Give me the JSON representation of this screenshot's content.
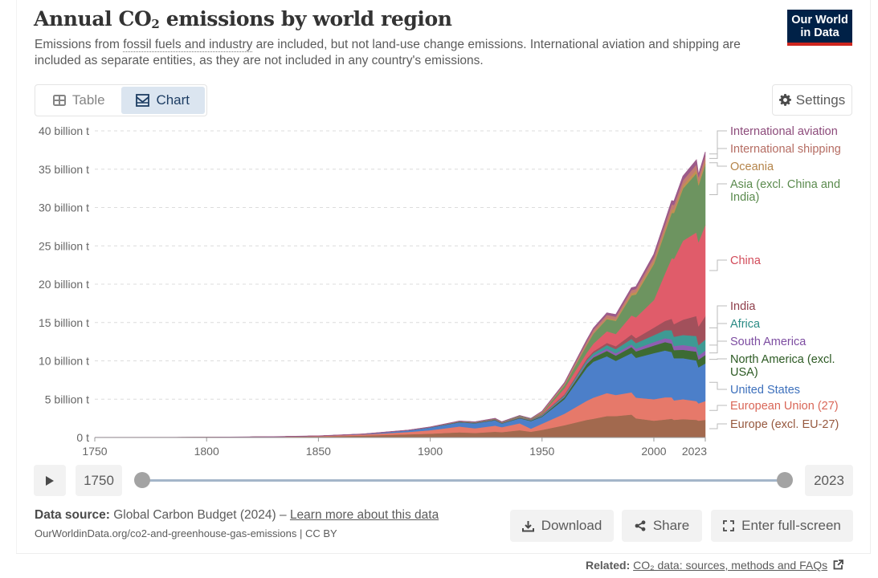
{
  "header": {
    "title_pre": "Annual CO",
    "title_sub": "2",
    "title_post": " emissions by world region",
    "subtitle_pre": "Emissions from ",
    "subtitle_link": "fossil fuels and industry",
    "subtitle_post": " are included, but not land-use change emissions. International aviation and shipping are included as separate entities, as they are not included in any country's emissions.",
    "logo_line1": "Our World",
    "logo_line2": "in Data"
  },
  "tabs": [
    {
      "label": "Table",
      "icon": "table-icon",
      "active": false
    },
    {
      "label": "Chart",
      "icon": "chart-icon",
      "active": true
    }
  ],
  "settings_label": "Settings",
  "timeline": {
    "start_year": "1750",
    "end_year": "2023"
  },
  "footer": {
    "source_label": "Data source:",
    "source_text": " Global Carbon Budget (2024) – ",
    "learn_more": "Learn more about this data",
    "url": "OurWorldinData.org/co2-and-greenhouse-gas-emissions | CC BY",
    "download": "Download",
    "share": "Share",
    "fullscreen": "Enter full-screen",
    "related_label": "Related:",
    "related_link": "CO₂ data: sources, methods and FAQs"
  },
  "chart_data": {
    "type": "area",
    "stacked": true,
    "title": "Annual CO₂ emissions by world region",
    "xlabel": "",
    "ylabel": "",
    "xlim": [
      1750,
      2023
    ],
    "ylim": [
      0,
      40
    ],
    "unit": "billion t",
    "grid": true,
    "legend_placement": "right",
    "x_ticks": [
      "1750",
      "1800",
      "1850",
      "1900",
      "1950",
      "2000",
      "2023"
    ],
    "y_ticks": [
      "0 t",
      "5 billion t",
      "10 billion t",
      "15 billion t",
      "20 billion t",
      "25 billion t",
      "30 billion t",
      "35 billion t",
      "40 billion t"
    ],
    "x": [
      1750,
      1800,
      1830,
      1850,
      1870,
      1890,
      1900,
      1913,
      1920,
      1929,
      1932,
      1940,
      1945,
      1950,
      1960,
      1970,
      1973,
      1979,
      1983,
      1990,
      1992,
      2000,
      2005,
      2008,
      2009,
      2013,
      2019,
      2020,
      2023
    ],
    "series": [
      {
        "name": "Europe (excl. EU-27)",
        "color": "#a2694e",
        "values": [
          0.009,
          0.03,
          0.08,
          0.14,
          0.25,
          0.42,
          0.5,
          0.68,
          0.6,
          0.75,
          0.7,
          0.95,
          0.75,
          1.0,
          1.6,
          2.3,
          2.45,
          2.8,
          2.8,
          3.0,
          2.5,
          2.2,
          2.35,
          2.45,
          2.3,
          2.4,
          2.3,
          2.2,
          2.3
        ]
      },
      {
        "name": "European Union (27)",
        "color": "#e6796a",
        "values": [
          0.0,
          0.0,
          0.02,
          0.06,
          0.15,
          0.3,
          0.45,
          0.75,
          0.6,
          0.8,
          0.65,
          0.9,
          0.4,
          0.8,
          1.5,
          2.5,
          2.75,
          3.0,
          2.75,
          2.9,
          2.7,
          2.8,
          2.9,
          2.8,
          2.55,
          2.6,
          2.45,
          2.25,
          2.45
        ]
      },
      {
        "name": "United States",
        "color": "#4c7fc9",
        "values": [
          0.0,
          0.0,
          0.002,
          0.005,
          0.05,
          0.2,
          0.35,
          0.55,
          0.65,
          0.7,
          0.47,
          0.65,
          1.0,
          0.9,
          1.9,
          4.3,
          4.7,
          4.8,
          4.45,
          5.1,
          5.2,
          6.0,
          6.1,
          5.9,
          5.5,
          5.35,
          5.3,
          4.7,
          4.9
        ]
      },
      {
        "name": "North America (excl. USA)",
        "color": "#3d6b33",
        "values": [
          0.0,
          0.0,
          0.0,
          0.0,
          0.002,
          0.01,
          0.02,
          0.05,
          0.05,
          0.06,
          0.05,
          0.07,
          0.08,
          0.1,
          0.25,
          0.5,
          0.55,
          0.7,
          0.68,
          0.8,
          0.82,
          1.0,
          1.1,
          1.1,
          1.05,
          1.1,
          1.15,
          1.02,
          1.1
        ]
      },
      {
        "name": "South America",
        "color": "#8e5eb1",
        "values": [
          0.0,
          0.0,
          0.0,
          0.0,
          0.0,
          0.002,
          0.005,
          0.01,
          0.015,
          0.02,
          0.02,
          0.03,
          0.035,
          0.05,
          0.1,
          0.2,
          0.23,
          0.3,
          0.3,
          0.35,
          0.37,
          0.45,
          0.5,
          0.55,
          0.54,
          0.62,
          0.6,
          0.52,
          0.58
        ]
      },
      {
        "name": "Africa",
        "color": "#3e9a94",
        "values": [
          0.0,
          0.0,
          0.0,
          0.0,
          0.0,
          0.002,
          0.005,
          0.01,
          0.015,
          0.02,
          0.02,
          0.03,
          0.04,
          0.1,
          0.15,
          0.3,
          0.35,
          0.45,
          0.55,
          0.7,
          0.72,
          0.9,
          1.05,
          1.2,
          1.2,
          1.3,
          1.45,
          1.35,
          1.45
        ]
      },
      {
        "name": "India",
        "color": "#a2505b",
        "values": [
          0.0,
          0.0,
          0.0,
          0.0,
          0.001,
          0.005,
          0.01,
          0.02,
          0.025,
          0.025,
          0.025,
          0.03,
          0.03,
          0.07,
          0.12,
          0.2,
          0.22,
          0.3,
          0.38,
          0.58,
          0.65,
          0.98,
          1.2,
          1.5,
          1.65,
          2.0,
          2.6,
          2.45,
          3.05
        ]
      },
      {
        "name": "China",
        "color": "#e05c6a",
        "values": [
          0.0,
          0.0,
          0.0,
          0.0,
          0.0,
          0.0,
          0.001,
          0.01,
          0.015,
          0.02,
          0.02,
          0.04,
          0.03,
          0.08,
          0.78,
          0.77,
          1.0,
          1.5,
          1.6,
          2.5,
          2.7,
          3.6,
          6.2,
          7.9,
          8.5,
          10.3,
          10.9,
          11.0,
          11.9
        ]
      },
      {
        "name": "Asia (excl. China and India)",
        "color": "#6d9460",
        "values": [
          0.0,
          0.0,
          0.0,
          0.0,
          0.002,
          0.01,
          0.02,
          0.05,
          0.06,
          0.08,
          0.08,
          0.15,
          0.1,
          0.12,
          0.4,
          1.0,
          1.3,
          1.6,
          1.7,
          2.6,
          3.0,
          4.7,
          5.4,
          5.9,
          6.0,
          6.8,
          7.7,
          7.4,
          7.9
        ]
      },
      {
        "name": "Oceania",
        "color": "#c19151",
        "values": [
          0.0,
          0.0,
          0.0,
          0.0,
          0.002,
          0.005,
          0.008,
          0.012,
          0.012,
          0.015,
          0.014,
          0.018,
          0.02,
          0.03,
          0.06,
          0.11,
          0.12,
          0.15,
          0.17,
          0.3,
          0.3,
          0.36,
          0.4,
          0.44,
          0.45,
          0.44,
          0.45,
          0.43,
          0.43
        ]
      },
      {
        "name": "International shipping",
        "color": "#c27b72",
        "values": [
          0.0,
          0.0,
          0.0,
          0.0,
          0.0,
          0.0,
          0.0,
          0.0,
          0.0,
          0.0,
          0.0,
          0.0,
          0.0,
          0.15,
          0.2,
          0.35,
          0.38,
          0.4,
          0.38,
          0.4,
          0.42,
          0.52,
          0.6,
          0.65,
          0.6,
          0.62,
          0.7,
          0.65,
          0.68
        ]
      },
      {
        "name": "International aviation",
        "color": "#9c5a8a",
        "values": [
          0.0,
          0.0,
          0.0,
          0.0,
          0.0,
          0.0,
          0.0,
          0.0,
          0.0,
          0.0,
          0.0,
          0.0,
          0.0,
          0.02,
          0.08,
          0.2,
          0.22,
          0.25,
          0.27,
          0.3,
          0.3,
          0.4,
          0.45,
          0.5,
          0.48,
          0.55,
          0.6,
          0.3,
          0.5
        ]
      }
    ],
    "legend_order": [
      "International aviation",
      "International shipping",
      "Oceania",
      "Asia (excl. China and India)",
      "China",
      "India",
      "Africa",
      "South America",
      "North America (excl. USA)",
      "United States",
      "European Union (27)",
      "Europe (excl. EU-27)"
    ]
  }
}
